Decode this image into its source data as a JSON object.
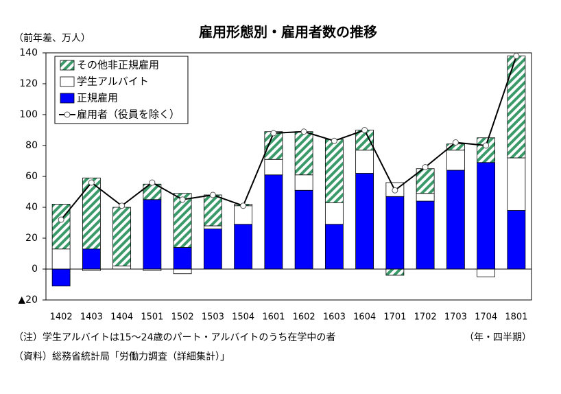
{
  "chart_data": {
    "type": "bar",
    "title": "雇用形態別・雇用者数の推移",
    "ylabel": "（前年差、万人）",
    "xlabel": "（年・四半期）",
    "notes": [
      "（注）学生アルバイトは15～24歳のパート・アルバイトのうち在学中の者",
      "（資料）総務省統計局「労働力調査（詳細集計）」"
    ],
    "categories": [
      "1402",
      "1403",
      "1404",
      "1501",
      "1502",
      "1503",
      "1504",
      "1601",
      "1602",
      "1603",
      "1604",
      "1701",
      "1702",
      "1703",
      "1704",
      "1801"
    ],
    "series": [
      {
        "name": "正規雇用",
        "type": "bar",
        "color": "#0000ff",
        "values": [
          -11,
          13,
          0,
          45,
          14,
          26,
          29,
          61,
          51,
          29,
          62,
          47,
          44,
          64,
          69,
          38
        ]
      },
      {
        "name": "学生アルバイト",
        "type": "bar",
        "color": "#ffffff",
        "values": [
          13,
          -1,
          2,
          -1,
          -3,
          2,
          12,
          10,
          10,
          14,
          15,
          9,
          5,
          13,
          -5,
          34
        ]
      },
      {
        "name": "その他非正規雇用",
        "type": "bar",
        "color": "#3a9a6a",
        "hatch": true,
        "values": [
          29,
          46,
          38,
          10,
          35,
          20,
          1,
          18,
          28,
          41,
          13,
          -4,
          16,
          4,
          16,
          66
        ]
      },
      {
        "name": "雇用者（役員を除く）",
        "type": "line",
        "color": "#000000",
        "values": [
          32,
          56,
          41,
          56,
          45,
          48,
          41,
          88,
          89,
          83,
          90,
          51,
          66,
          82,
          80,
          138
        ]
      }
    ],
    "ylim": [
      -20,
      140
    ],
    "yticks": [
      {
        "value": -20,
        "label": "▲20"
      },
      0,
      20,
      40,
      60,
      80,
      100,
      120,
      140
    ]
  }
}
